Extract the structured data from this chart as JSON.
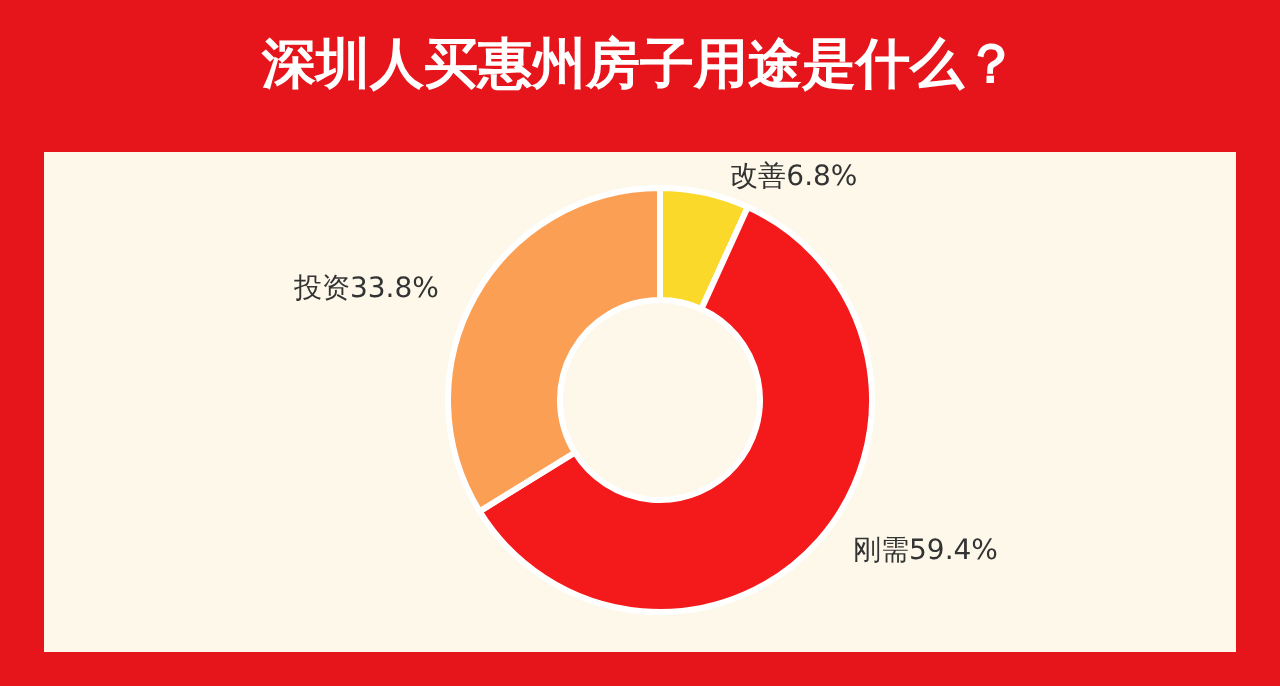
{
  "chart_data": {
    "type": "donut",
    "title": "深圳人买惠州房子用途是什么？",
    "categories": [
      "改善",
      "刚需",
      "投资"
    ],
    "values": [
      6.8,
      59.4,
      33.8
    ],
    "value_labels": [
      "6.8%",
      "59.4%",
      "33.8%"
    ],
    "colors": [
      "#fbd92a",
      "#f41a1c",
      "#fb9f55"
    ],
    "legend": false
  }
}
